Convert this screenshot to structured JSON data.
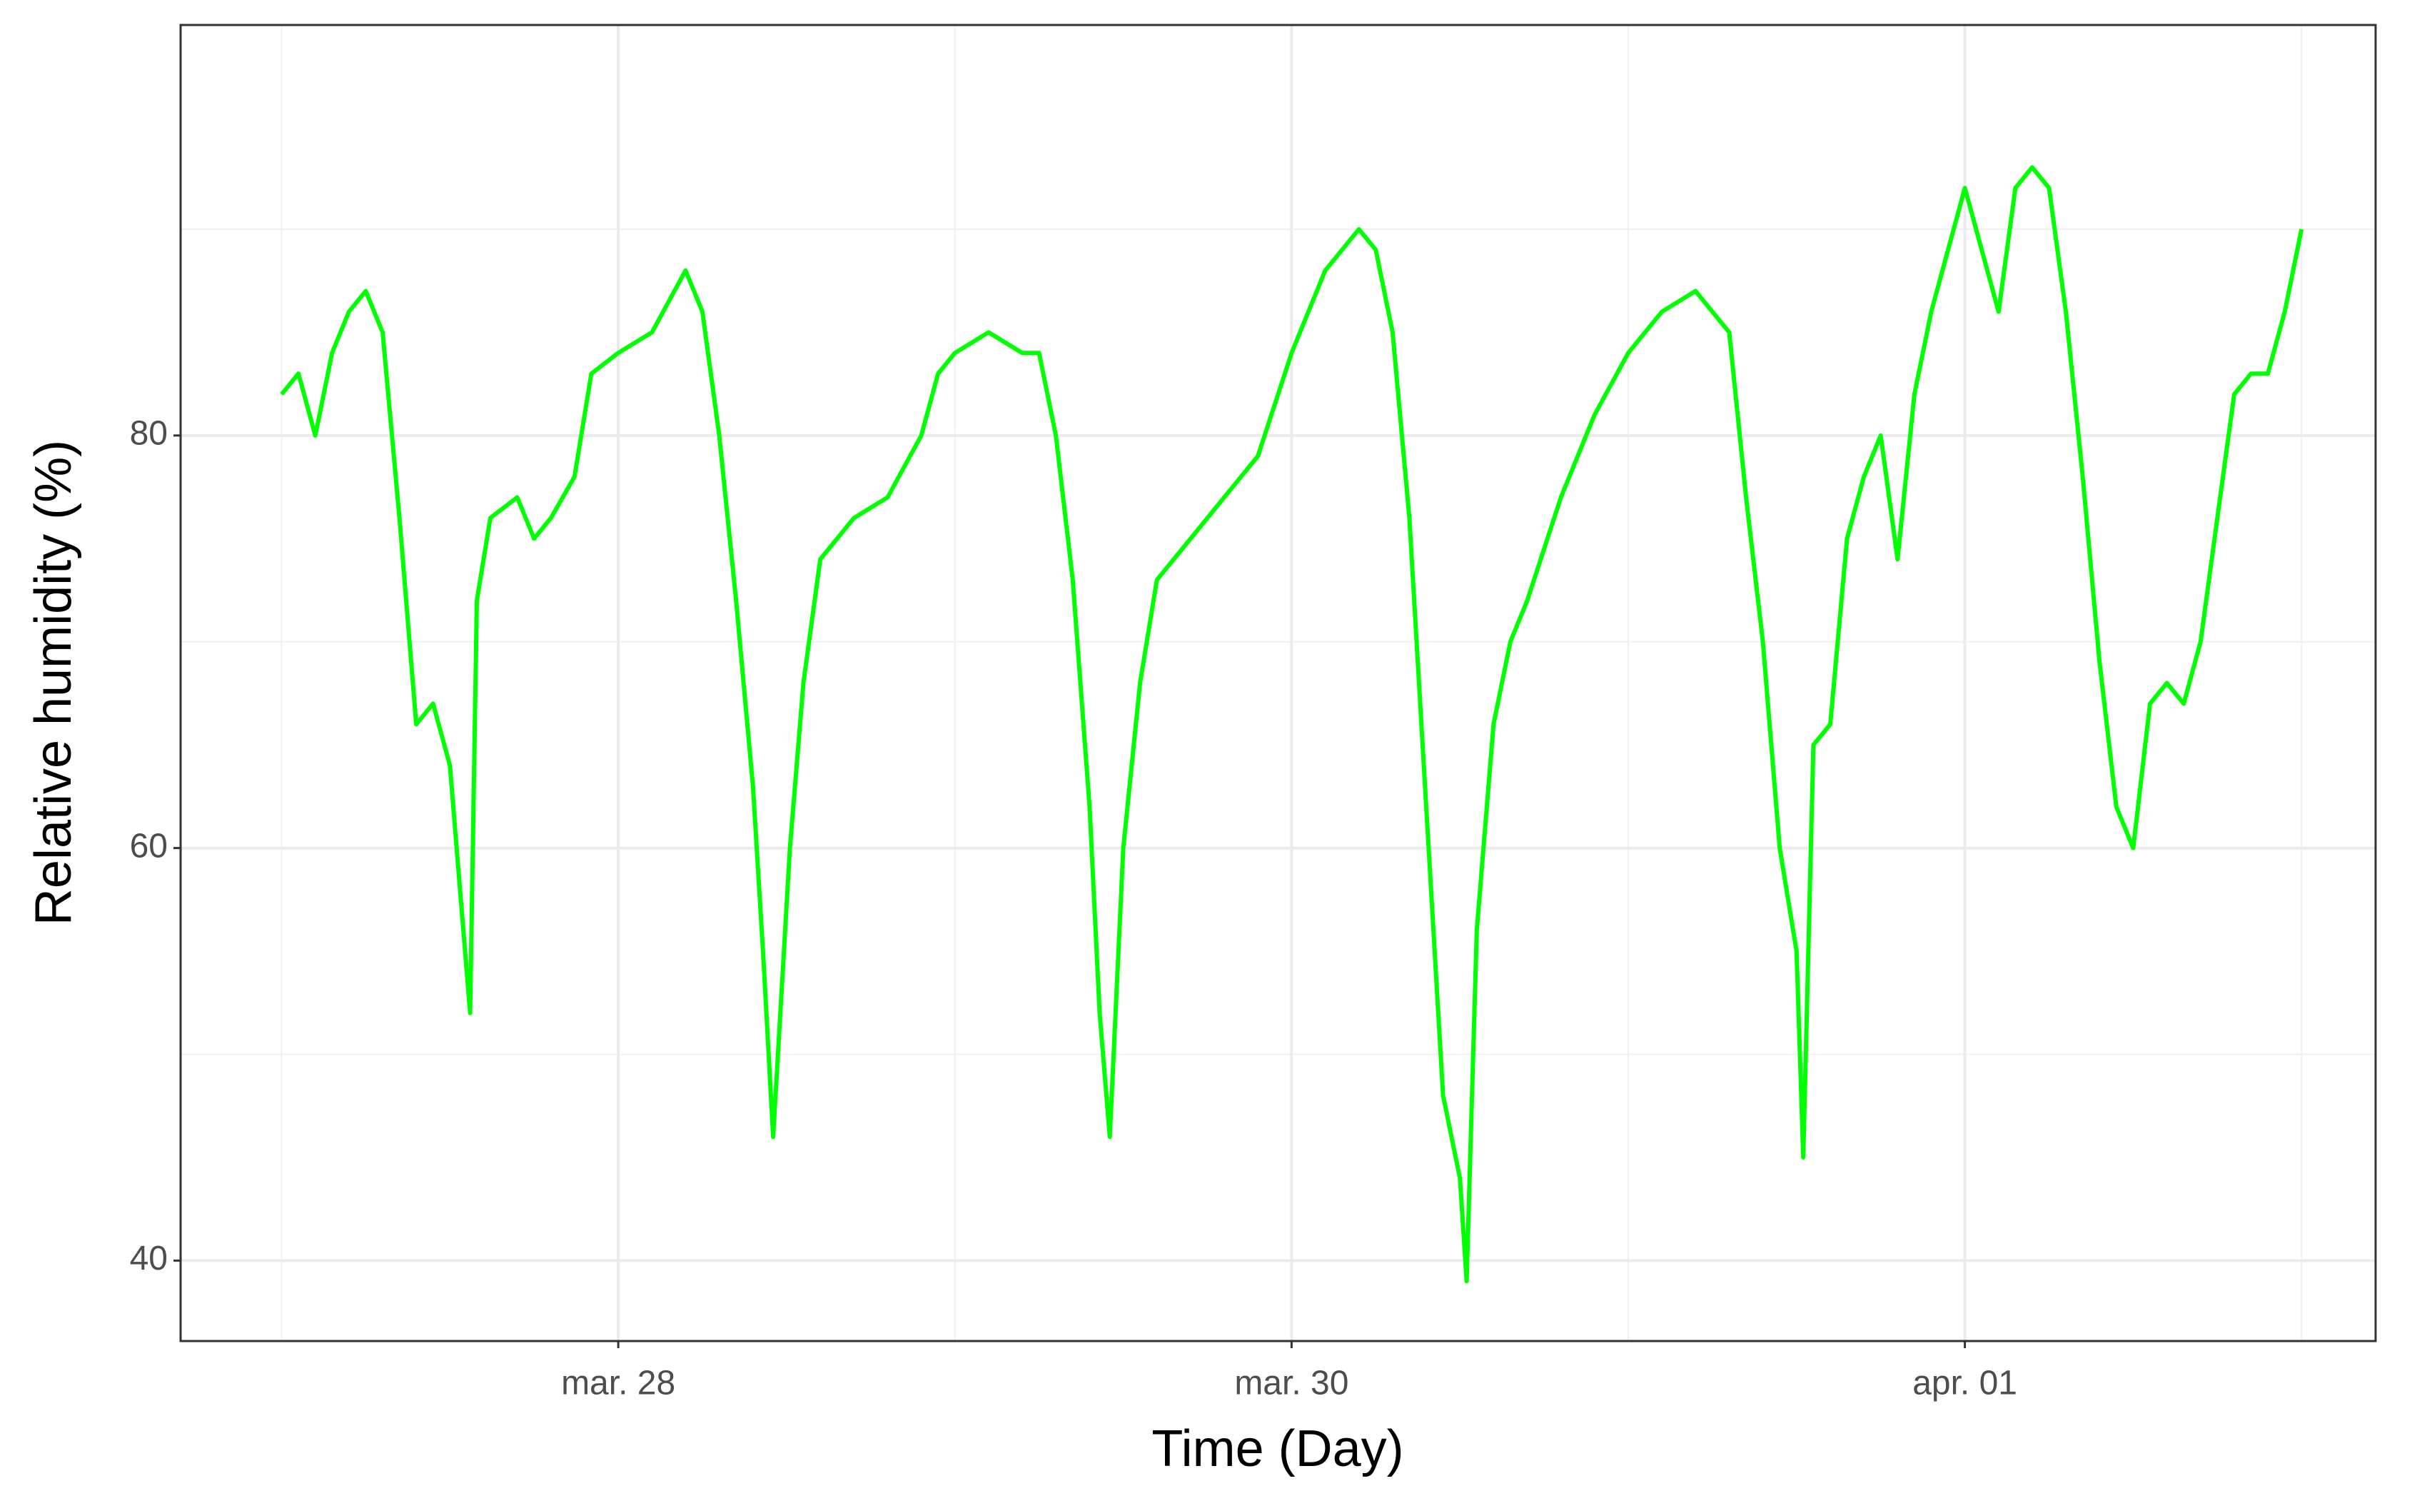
{
  "chart_data": {
    "type": "line",
    "xlabel": "Time (Day)",
    "ylabel": "Relative humidity (%)",
    "x": [
      27.0,
      27.05,
      27.1,
      27.15,
      27.2,
      27.25,
      27.3,
      27.35,
      27.4,
      27.45,
      27.5,
      27.53,
      27.56,
      27.58,
      27.62,
      27.7,
      27.75,
      27.8,
      27.87,
      27.92,
      28.0,
      28.1,
      28.2,
      28.25,
      28.3,
      28.35,
      28.4,
      28.43,
      28.46,
      28.51,
      28.55,
      28.6,
      28.65,
      28.7,
      28.8,
      28.9,
      28.95,
      29.0,
      29.1,
      29.2,
      29.25,
      29.3,
      29.35,
      29.4,
      29.43,
      29.46,
      29.5,
      29.55,
      29.6,
      29.7,
      29.8,
      29.9,
      30.0,
      30.1,
      30.15,
      30.2,
      30.25,
      30.3,
      30.35,
      30.4,
      30.45,
      30.5,
      30.52,
      30.55,
      30.6,
      30.65,
      30.7,
      30.8,
      30.9,
      31.0,
      31.1,
      31.2,
      31.3,
      31.35,
      31.4,
      31.45,
      31.5,
      31.52,
      31.55,
      31.6,
      31.65,
      31.7,
      31.75,
      31.8,
      31.85,
      31.9,
      32.0,
      32.05,
      32.1,
      32.15,
      32.2,
      32.25,
      32.3,
      32.35,
      32.4,
      32.45,
      32.5,
      32.55,
      32.6,
      32.65,
      32.7,
      32.75,
      32.8,
      32.85,
      32.9,
      32.95,
      33.0
    ],
    "series": [
      {
        "name": "Relative humidity",
        "color": "#00ff00",
        "values": [
          82,
          83,
          80,
          84,
          86,
          87,
          85,
          76,
          66,
          67,
          64,
          58,
          52,
          72,
          76,
          77,
          75,
          76,
          78,
          83,
          84,
          85,
          88,
          86,
          80,
          72,
          63,
          55,
          46,
          60,
          68,
          74,
          75,
          76,
          77,
          80,
          83,
          84,
          85,
          84,
          84,
          80,
          73,
          62,
          52,
          46,
          60,
          68,
          73,
          75,
          77,
          79,
          84,
          88,
          89,
          90,
          89,
          85,
          76,
          62,
          48,
          44,
          39,
          56,
          66,
          70,
          72,
          77,
          81,
          84,
          86,
          87,
          85,
          77,
          70,
          60,
          55,
          45,
          65,
          66,
          75,
          78,
          80,
          74,
          82,
          86,
          92,
          89,
          86,
          92,
          93,
          92,
          86,
          78,
          69,
          62,
          60,
          67,
          68,
          67,
          70,
          76,
          82,
          83,
          83,
          86,
          90
        ]
      }
    ],
    "xlim": [
      26.7,
      33.22
    ],
    "ylim": [
      36.1,
      99.9
    ],
    "xticks": [
      {
        "value": 28,
        "label": "mar. 28"
      },
      {
        "value": 30,
        "label": "mar. 30"
      },
      {
        "value": 32,
        "label": "apr. 01"
      }
    ],
    "yticks": [
      40,
      60,
      80
    ],
    "x_minor_grid": [
      27,
      29,
      31,
      33
    ],
    "y_minor_grid": [
      50,
      70,
      90
    ],
    "grid": true
  }
}
